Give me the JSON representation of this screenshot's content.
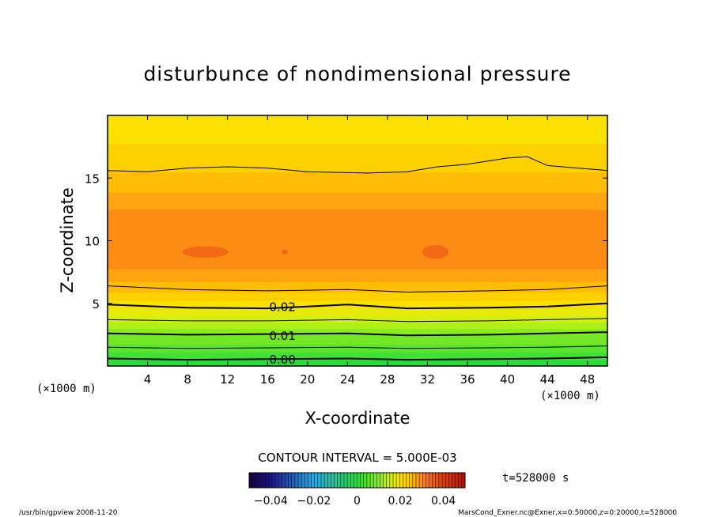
{
  "chart_data": {
    "type": "heatmap",
    "title": "disturbunce of nondimensional pressure",
    "xlabel": "X-coordinate",
    "ylabel": "Z-coordinate",
    "x_unit": "(×1000 m)",
    "y_unit": "(×1000 m)",
    "xlim": [
      0,
      50
    ],
    "ylim": [
      0,
      20
    ],
    "xticks": [
      4,
      8,
      12,
      16,
      20,
      24,
      28,
      32,
      36,
      40,
      44,
      48
    ],
    "yticks": [
      5,
      10,
      15
    ],
    "contour_interval_label": "CONTOUR INTERVAL = 5.000E-03",
    "time_label": "t=528000 s",
    "colorbar": {
      "range": [
        -0.05,
        0.05
      ],
      "ticks": [
        "−0.04",
        "−0.02",
        "0",
        "0.02",
        "0.04"
      ]
    },
    "profile": {
      "z": [
        0,
        0.5,
        1,
        1.5,
        2,
        3,
        4,
        5,
        6,
        7,
        8,
        9,
        10,
        11,
        12,
        13,
        14,
        15,
        16,
        17,
        18,
        19,
        20
      ],
      "value": [
        -0.001,
        0.001,
        0.003,
        0.005,
        0.007,
        0.011,
        0.016,
        0.02,
        0.024,
        0.027,
        0.0295,
        0.031,
        0.031,
        0.0305,
        0.0295,
        0.028,
        0.026,
        0.0245,
        0.023,
        0.0218,
        0.021,
        0.0203,
        0.0198
      ]
    },
    "contour_labels": [
      {
        "x": 17.5,
        "z": 4.7,
        "text": "0.02"
      },
      {
        "x": 17.5,
        "z": 2.4,
        "text": "0.01"
      },
      {
        "x": 17.5,
        "z": 0.5,
        "text": "0.00"
      }
    ],
    "contours": [
      {
        "points": [
          [
            0,
            0.6
          ],
          [
            8,
            0.5
          ],
          [
            16,
            0.55
          ],
          [
            24,
            0.6
          ],
          [
            30,
            0.5
          ],
          [
            38,
            0.55
          ],
          [
            44,
            0.6
          ],
          [
            50,
            0.7
          ]
        ],
        "bold": true
      },
      {
        "points": [
          [
            0,
            1.5
          ],
          [
            8,
            1.4
          ],
          [
            16,
            1.45
          ],
          [
            24,
            1.5
          ],
          [
            30,
            1.4
          ],
          [
            38,
            1.45
          ],
          [
            44,
            1.5
          ],
          [
            50,
            1.6
          ]
        ],
        "bold": false
      },
      {
        "points": [
          [
            0,
            2.6
          ],
          [
            8,
            2.5
          ],
          [
            16,
            2.55
          ],
          [
            24,
            2.6
          ],
          [
            30,
            2.45
          ],
          [
            38,
            2.5
          ],
          [
            44,
            2.6
          ],
          [
            50,
            2.7
          ]
        ],
        "bold": true
      },
      {
        "points": [
          [
            0,
            3.7
          ],
          [
            8,
            3.6
          ],
          [
            16,
            3.6
          ],
          [
            24,
            3.7
          ],
          [
            30,
            3.55
          ],
          [
            38,
            3.6
          ],
          [
            44,
            3.7
          ],
          [
            50,
            3.8
          ]
        ],
        "bold": false
      },
      {
        "points": [
          [
            0,
            4.9
          ],
          [
            8,
            4.65
          ],
          [
            16,
            4.6
          ],
          [
            24,
            4.9
          ],
          [
            30,
            4.6
          ],
          [
            38,
            4.65
          ],
          [
            44,
            4.75
          ],
          [
            50,
            5.0
          ]
        ],
        "bold": true
      },
      {
        "points": [
          [
            0,
            6.4
          ],
          [
            8,
            6.1
          ],
          [
            16,
            6.0
          ],
          [
            24,
            6.1
          ],
          [
            30,
            5.9
          ],
          [
            38,
            6.0
          ],
          [
            44,
            6.1
          ],
          [
            50,
            6.4
          ]
        ],
        "bold": false
      },
      {
        "points": [
          [
            0,
            15.6
          ],
          [
            4,
            15.5
          ],
          [
            8,
            15.8
          ],
          [
            12,
            15.9
          ],
          [
            16,
            15.8
          ],
          [
            20,
            15.5
          ],
          [
            26,
            15.4
          ],
          [
            30,
            15.5
          ],
          [
            33,
            15.9
          ],
          [
            36,
            16.1
          ],
          [
            40,
            16.6
          ],
          [
            42,
            16.7
          ],
          [
            44,
            16.0
          ],
          [
            47,
            15.8
          ],
          [
            50,
            15.6
          ]
        ],
        "bold": false
      }
    ],
    "blobs": [
      {
        "x": 9.8,
        "z": 9.1,
        "rx": 2.3,
        "rz": 0.45
      },
      {
        "x": 32.8,
        "z": 9.1,
        "rx": 1.3,
        "rz": 0.55
      },
      {
        "x": 17.7,
        "z": 9.1,
        "rx": 0.3,
        "rz": 0.2
      }
    ]
  },
  "footer": {
    "left": "/usr/bin/gpview   2008-11-20",
    "right": "MarsCond_Exner.nc@Exner,x=0:50000,z=0:20000,t=528000"
  }
}
